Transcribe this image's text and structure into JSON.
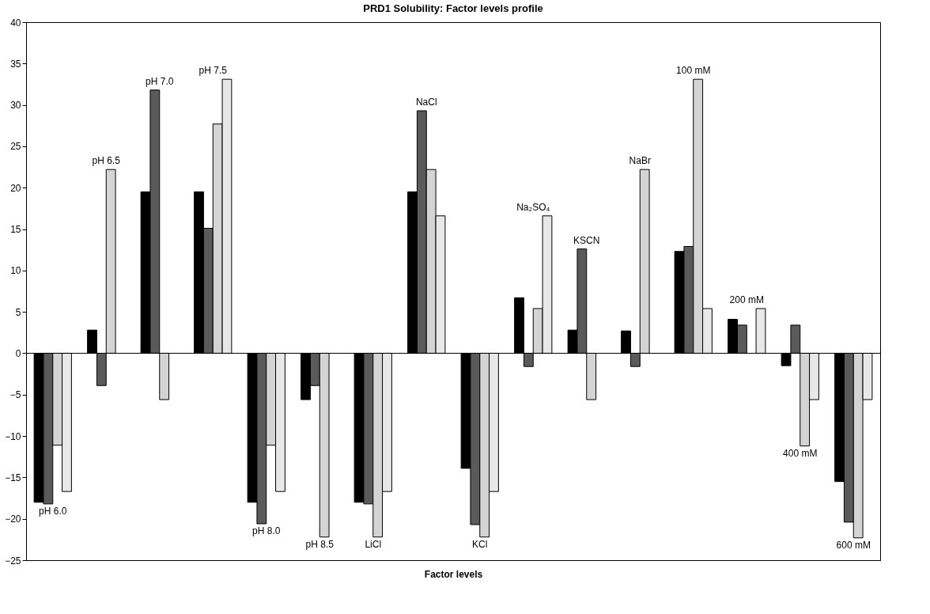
{
  "chart_data": {
    "type": "bar",
    "title": "PRD1 Solubility: Factor levels profile",
    "xlabel": "Factor levels",
    "categories": [
      "pH 6.0",
      "pH 6.5",
      "pH 7.0",
      "pH 7.5",
      "pH 8.0",
      "pH 8.5",
      "LiCl",
      "NaCl",
      "KCl",
      "Na₂SO₄",
      "KSCN",
      "NaBr",
      "100 mM",
      "200 mM",
      "400 mM",
      "600 mM"
    ],
    "series": [
      {
        "color": "#000000",
        "values": [
          -18,
          2.8,
          19.5,
          19.5,
          -18,
          -5.6,
          -18,
          19.5,
          -13.9,
          6.7,
          2.8,
          2.7,
          12.3,
          4.1,
          -1.5,
          -15.5
        ]
      },
      {
        "color": "#5a5a5a",
        "values": [
          -18.2,
          -3.9,
          31.8,
          15.1,
          -20.6,
          -3.9,
          -18.2,
          29.3,
          -20.7,
          -1.6,
          12.6,
          -1.6,
          12.9,
          3.4,
          3.4,
          -20.4
        ]
      },
      {
        "color": "#d4d4d4",
        "values": [
          -11.1,
          22.2,
          -5.6,
          27.7,
          -11.1,
          -22.2,
          -22.2,
          22.2,
          -22.2,
          5.4,
          -5.6,
          22.2,
          33.1,
          null,
          -11.2,
          -22.3
        ]
      },
      {
        "color": "#e8e8e8",
        "values": [
          -16.7,
          null,
          null,
          33.1,
          -16.7,
          null,
          -16.7,
          16.6,
          -16.7,
          16.6,
          null,
          null,
          5.4,
          5.4,
          -5.6,
          -5.6
        ]
      }
    ],
    "ylim": [
      -25,
      40
    ],
    "yticks": [
      -25,
      -20,
      -15,
      -10,
      -5,
      0,
      5,
      10,
      15,
      20,
      25,
      30,
      35,
      40
    ],
    "ref_lines": [
      {
        "axis": "y",
        "value": 0,
        "color": "#000000"
      }
    ],
    "grid": false,
    "legend": false,
    "tick_labels": "y"
  }
}
